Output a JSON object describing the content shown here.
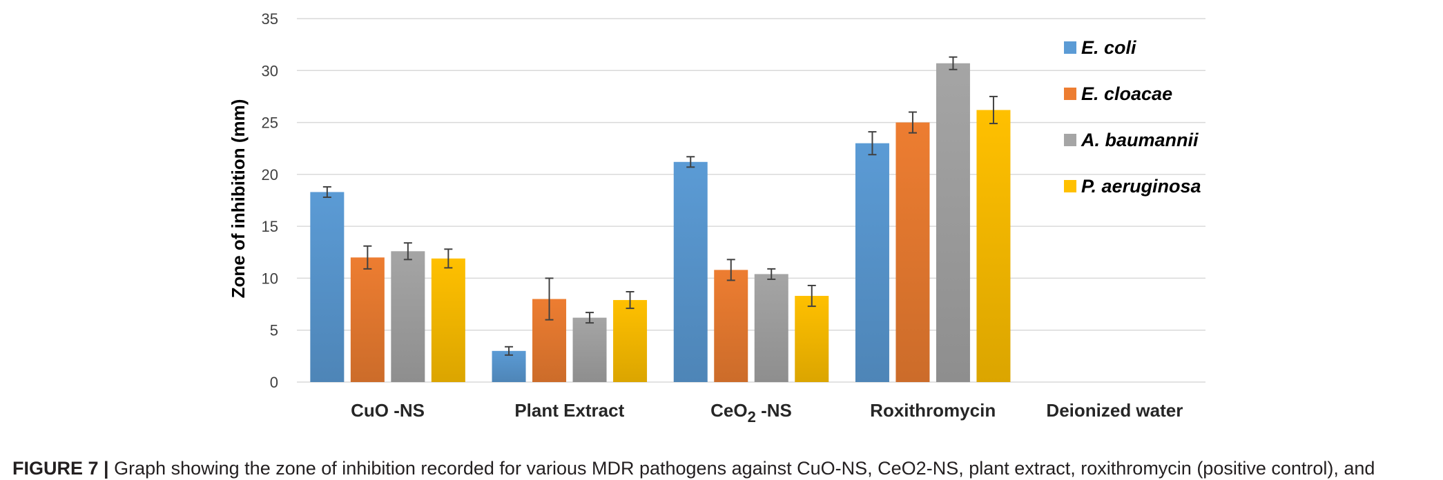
{
  "chart_data": {
    "type": "bar",
    "title": "",
    "xlabel": "",
    "ylabel": "Zone of inhibition (mm)",
    "ylim": [
      0,
      35
    ],
    "yticks": [
      0,
      5,
      10,
      15,
      20,
      25,
      30,
      35
    ],
    "grid": true,
    "legend_position": "right",
    "categories": [
      {
        "label": "CuO -NS",
        "base": "",
        "sub": "",
        "rest": ""
      },
      {
        "label": "Plant Extract",
        "base": "",
        "sub": "",
        "rest": ""
      },
      {
        "label": "",
        "base": "CeO",
        "sub": "2",
        "rest": " -NS"
      },
      {
        "label": "Roxithromycin",
        "base": "",
        "sub": "",
        "rest": ""
      },
      {
        "label": "Deionized water",
        "base": "",
        "sub": "",
        "rest": ""
      }
    ],
    "series": [
      {
        "name": "E. coli",
        "color": "#5b9bd5",
        "values": [
          18.3,
          3.0,
          21.2,
          23.0,
          0
        ],
        "errors": [
          0.5,
          0.4,
          0.5,
          1.1,
          0
        ]
      },
      {
        "name": "E. cloacae",
        "color": "#ed7d31",
        "values": [
          12.0,
          8.0,
          10.8,
          25.0,
          0
        ],
        "errors": [
          1.1,
          2.0,
          1.0,
          1.0,
          0
        ]
      },
      {
        "name": "A. baumannii",
        "color": "#a5a5a5",
        "values": [
          12.6,
          6.2,
          10.4,
          30.7,
          0
        ],
        "errors": [
          0.8,
          0.5,
          0.5,
          0.6,
          0
        ]
      },
      {
        "name": "P. aeruginosa",
        "color": "#ffc000",
        "values": [
          11.9,
          7.9,
          8.3,
          26.2,
          0
        ],
        "errors": [
          0.9,
          0.8,
          1.0,
          1.3,
          0
        ]
      }
    ]
  },
  "caption": {
    "label": "FIGURE 7 |",
    "text": " Graph showing the zone of inhibition recorded for various MDR pathogens against CuO-NS, CeO2-NS, plant extract, roxithromycin (positive control), and"
  }
}
